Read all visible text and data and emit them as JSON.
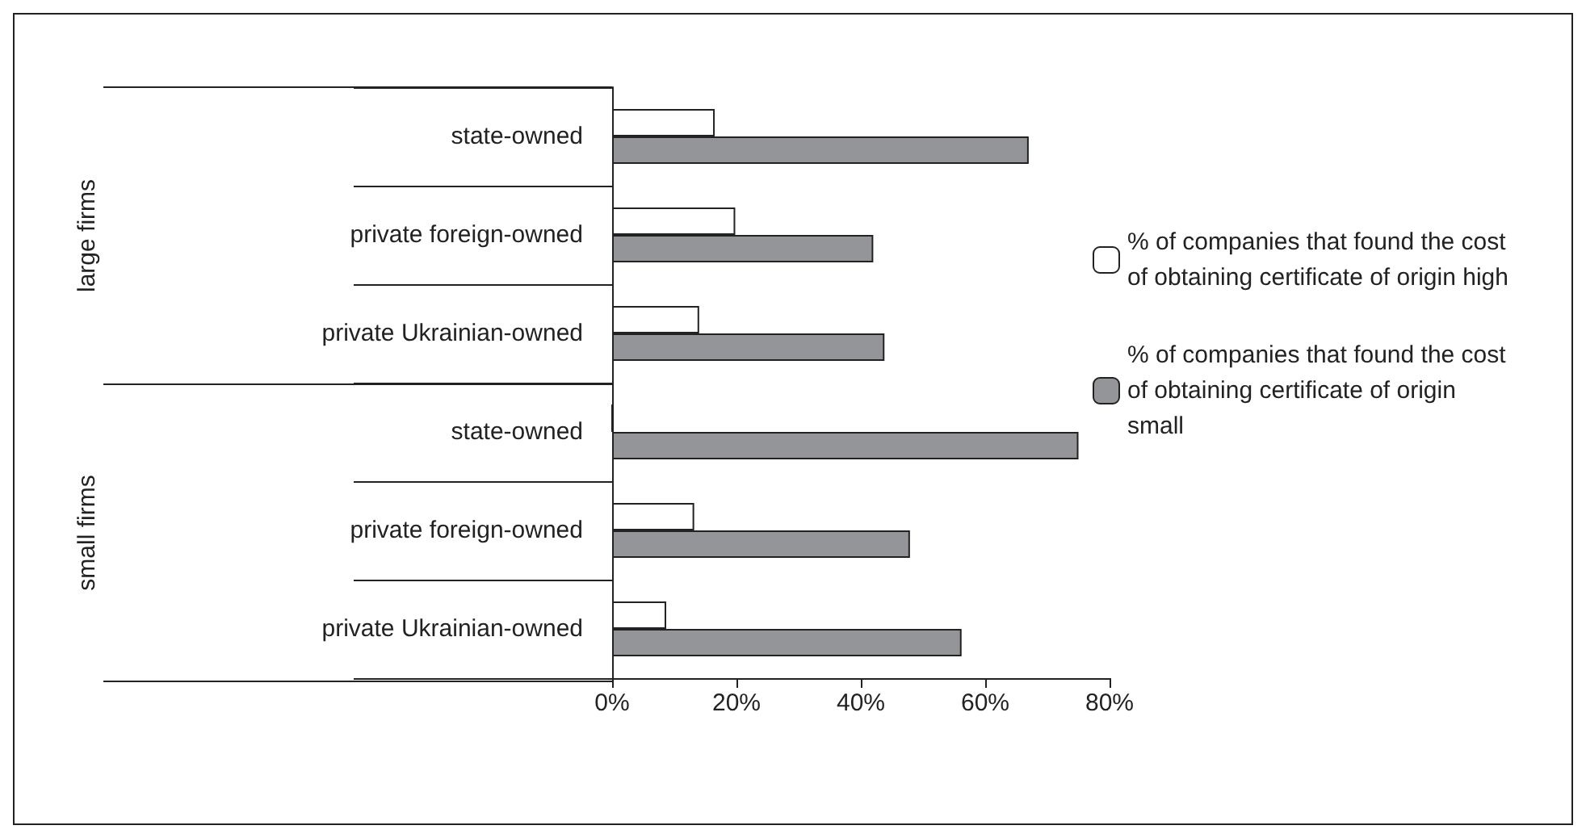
{
  "chart_data": {
    "type": "bar",
    "orientation": "horizontal",
    "categories": [
      "state-owned",
      "private foreign-owned",
      "private Ukrainian-owned",
      "state-owned",
      "private foreign-owned",
      "private Ukrainian-owned"
    ],
    "series": [
      {
        "name": "% of companies that found the cost of obtaining certificate of origin high",
        "color": "#ffffff",
        "values": [
          16.5,
          19.8,
          14,
          0,
          13.2,
          8.7
        ]
      },
      {
        "name": "% of companies that found the cost of obtaining certificate of origin small",
        "color": "#939598",
        "values": [
          67,
          42,
          43.8,
          75,
          47.9,
          56.2
        ]
      }
    ],
    "xlim": [
      0,
      80
    ],
    "xticks": [
      {
        "value": 0,
        "label": "0%"
      },
      {
        "value": 20,
        "label": "20%"
      },
      {
        "value": 40,
        "label": "40%"
      },
      {
        "value": 60,
        "label": "60%"
      },
      {
        "value": 80,
        "label": "80%"
      }
    ],
    "annotations": [
      "large firms",
      "small firms"
    ],
    "grid": false,
    "legend": "right"
  }
}
